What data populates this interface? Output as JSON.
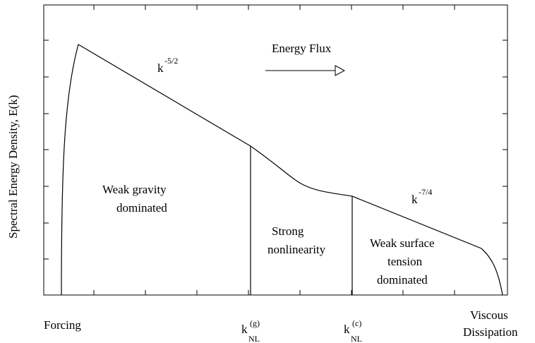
{
  "chart_data": {
    "type": "line",
    "ylabel": "Spectral Energy Density, E(k)",
    "x_ticks": [
      {
        "base": "k",
        "sub": "NL",
        "sup": "(g)"
      },
      {
        "base": "k",
        "sub": "NL",
        "sup": "(c)"
      }
    ],
    "bottom_labels": {
      "forcing": "Forcing",
      "viscous_line1": "Viscous",
      "viscous_line2": "Dissipation"
    },
    "slope_labels": [
      {
        "base": "k",
        "sup": "-5/2"
      },
      {
        "base": "k",
        "sup": "-7/4"
      }
    ],
    "annotations": {
      "energy_flux": "Energy Flux",
      "weak_gravity": [
        "Weak gravity",
        "dominated"
      ],
      "strong_nonlinearity": [
        "Strong",
        "nonlinearity"
      ],
      "weak_surface_tension": [
        "Weak surface",
        "tension",
        "dominated"
      ]
    },
    "grid": false
  }
}
